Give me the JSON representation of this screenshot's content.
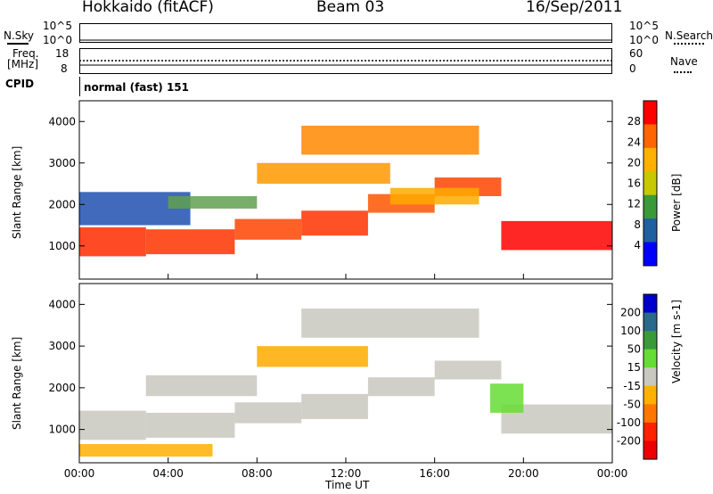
{
  "header": {
    "left": "Hokkaido (fitACF)",
    "center": "Beam 03",
    "right": "16/Sep/2011"
  },
  "noise_panel": {
    "left_label": "N.Sky",
    "left_ticks": [
      "10^5",
      "10^0"
    ],
    "right_ticks": [
      "10^5",
      "10^0"
    ],
    "right_label": "N.Search"
  },
  "freq_panel": {
    "left_label_1": "Freq.",
    "left_label_2": "[MHz]",
    "left_ticks": [
      "18",
      "8"
    ],
    "right_ticks": [
      "60",
      "0"
    ],
    "right_label": "Nave"
  },
  "cpid_panel": {
    "label": "CPID",
    "mode": "normal (fast) 151"
  },
  "chart_data": [
    {
      "type": "heatmap",
      "name": "power",
      "ylabel": "Slant Range [km]",
      "yticks": [
        "4000",
        "3000",
        "2000",
        "1000"
      ],
      "ylim": [
        200,
        4500
      ],
      "colorbar_label": "Power [dB]",
      "colorbar_ticks": [
        "28",
        "24",
        "20",
        "16",
        "12",
        "8",
        "4"
      ],
      "colorbar_colors": [
        "#ff0000",
        "#ff6600",
        "#ffb000",
        "#c8c800",
        "#3a9a3a",
        "#2060a0",
        "#0000ff"
      ],
      "bands": [
        {
          "t0": 0,
          "t1": 3,
          "r0": 750,
          "r1": 1450,
          "color": "#ff2a00"
        },
        {
          "t0": 3,
          "t1": 7,
          "r0": 800,
          "r1": 1400,
          "color": "#ff3300"
        },
        {
          "t0": 7,
          "t1": 10,
          "r0": 1150,
          "r1": 1650,
          "color": "#ff4400"
        },
        {
          "t0": 10,
          "t1": 13,
          "r0": 1250,
          "r1": 1850,
          "color": "#ff3300"
        },
        {
          "t0": 13,
          "t1": 16,
          "r0": 1800,
          "r1": 2250,
          "color": "#ff5500"
        },
        {
          "t0": 16,
          "t1": 19,
          "r0": 2200,
          "r1": 2650,
          "color": "#ff4400"
        },
        {
          "t0": 19,
          "t1": 24,
          "r0": 900,
          "r1": 1600,
          "color": "#ff0000"
        },
        {
          "t0": 0,
          "t1": 5,
          "r0": 1500,
          "r1": 2300,
          "color": "#2050b0"
        },
        {
          "t0": 4,
          "t1": 8,
          "r0": 1900,
          "r1": 2200,
          "color": "#60a050"
        },
        {
          "t0": 8,
          "t1": 14,
          "r0": 2500,
          "r1": 3000,
          "color": "#ff9900"
        },
        {
          "t0": 10,
          "t1": 18,
          "r0": 3200,
          "r1": 3900,
          "color": "#ff8800"
        },
        {
          "t0": 14,
          "t1": 18,
          "r0": 2000,
          "r1": 2400,
          "color": "#ffaa00"
        }
      ]
    },
    {
      "type": "heatmap",
      "name": "velocity",
      "ylabel": "Slant Range [km]",
      "yticks": [
        "4000",
        "3000",
        "2000",
        "1000"
      ],
      "ylim": [
        200,
        4500
      ],
      "colorbar_label": "Velocity [m s-1]",
      "colorbar_ticks": [
        "200",
        "100",
        "50",
        "15",
        "-15",
        "-50",
        "-100",
        "-200"
      ],
      "colorbar_colors": [
        "#0000cc",
        "#2a6a8a",
        "#3a9a3a",
        "#66dd33",
        "#c8c8c0",
        "#ffb000",
        "#ff7700",
        "#ff2200",
        "#ee0000"
      ],
      "bands": [
        {
          "t0": 0,
          "t1": 3,
          "r0": 750,
          "r1": 1450,
          "color": "#c8c8c0"
        },
        {
          "t0": 3,
          "t1": 7,
          "r0": 800,
          "r1": 1400,
          "color": "#c8c8c0"
        },
        {
          "t0": 7,
          "t1": 10,
          "r0": 1150,
          "r1": 1650,
          "color": "#c8c8c0"
        },
        {
          "t0": 10,
          "t1": 13,
          "r0": 1250,
          "r1": 1850,
          "color": "#c8c8c0"
        },
        {
          "t0": 13,
          "t1": 16,
          "r0": 1800,
          "r1": 2250,
          "color": "#c8c8c0"
        },
        {
          "t0": 16,
          "t1": 19,
          "r0": 2200,
          "r1": 2650,
          "color": "#c8c8c0"
        },
        {
          "t0": 19,
          "t1": 24,
          "r0": 900,
          "r1": 1600,
          "color": "#c8c8c0"
        },
        {
          "t0": 18.5,
          "t1": 20,
          "r0": 1400,
          "r1": 2100,
          "color": "#66dd33"
        },
        {
          "t0": 3,
          "t1": 8,
          "r0": 1800,
          "r1": 2300,
          "color": "#c8c8c0"
        },
        {
          "t0": 8,
          "t1": 13,
          "r0": 2500,
          "r1": 3000,
          "color": "#ffaa00"
        },
        {
          "t0": 10,
          "t1": 18,
          "r0": 3200,
          "r1": 3900,
          "color": "#c8c8c0"
        },
        {
          "t0": 0,
          "t1": 6,
          "r0": 350,
          "r1": 650,
          "color": "#ffb000"
        }
      ]
    }
  ],
  "xaxis": {
    "label": "Time UT",
    "ticks": [
      "00:00",
      "04:00",
      "08:00",
      "12:00",
      "16:00",
      "20:00",
      "00:00"
    ]
  }
}
